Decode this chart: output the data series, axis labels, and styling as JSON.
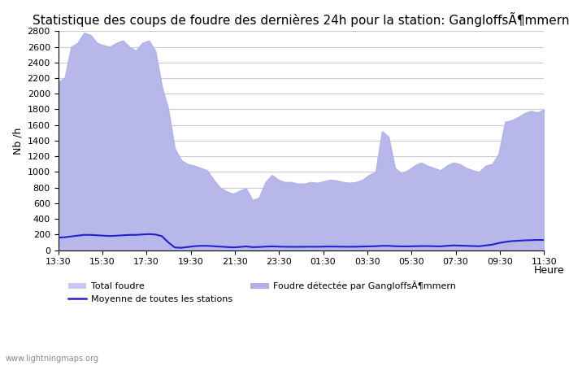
{
  "title": "Statistique des coups de foudre des dernières 24h pour la station: GangloffsÃ¶mmern",
  "xlabel": "Heure",
  "ylabel": "Nb /h",
  "ylim": [
    0,
    2800
  ],
  "yticks": [
    0,
    200,
    400,
    600,
    800,
    1000,
    1200,
    1400,
    1600,
    1800,
    2000,
    2200,
    2400,
    2600,
    2800
  ],
  "xtick_labels": [
    "13:30",
    "15:30",
    "17:30",
    "19:30",
    "21:30",
    "23:30",
    "01:30",
    "03:30",
    "05:30",
    "07:30",
    "09:30",
    "11:30"
  ],
  "total_foudre_color": "#c8c8f0",
  "detected_foudre_color": "#b0b0e8",
  "mean_line_color": "#2222cc",
  "background_color": "#ffffff",
  "grid_color": "#cccccc",
  "watermark": "www.lightningmaps.org",
  "total_foudre_y": [
    2150,
    2200,
    2600,
    2650,
    2780,
    2750,
    2650,
    2620,
    2600,
    2650,
    2680,
    2600,
    2550,
    2650,
    2680,
    2550,
    2100,
    1800,
    1300,
    1150,
    1100,
    1080,
    1050,
    1020,
    900,
    800,
    750,
    720,
    760,
    790,
    640,
    670,
    870,
    960,
    900,
    870,
    870,
    850,
    850,
    870,
    860,
    880,
    900,
    890,
    870,
    860,
    870,
    900,
    960,
    1000,
    1520,
    1450,
    1050,
    980,
    1020,
    1080,
    1120,
    1080,
    1050,
    1020,
    1080,
    1120,
    1100,
    1050,
    1020,
    1000,
    1080,
    1100,
    1230,
    1640,
    1660,
    1700,
    1750,
    1780,
    1760,
    1800
  ],
  "detected_foudre_y": [
    2150,
    2200,
    2600,
    2650,
    2780,
    2750,
    2650,
    2620,
    2600,
    2650,
    2680,
    2600,
    2550,
    2650,
    2680,
    2550,
    2100,
    1800,
    1300,
    1150,
    1100,
    1080,
    1050,
    1020,
    900,
    800,
    750,
    720,
    760,
    790,
    640,
    670,
    870,
    960,
    900,
    870,
    870,
    850,
    850,
    870,
    860,
    880,
    900,
    890,
    870,
    860,
    870,
    900,
    960,
    1000,
    1520,
    1450,
    1050,
    980,
    1020,
    1080,
    1120,
    1080,
    1050,
    1020,
    1080,
    1120,
    1100,
    1050,
    1020,
    1000,
    1080,
    1100,
    1230,
    1640,
    1660,
    1700,
    1750,
    1780,
    1760,
    1800
  ],
  "mean_line_y": [
    160,
    165,
    175,
    185,
    195,
    195,
    190,
    185,
    180,
    185,
    190,
    195,
    195,
    200,
    205,
    200,
    180,
    100,
    35,
    30,
    40,
    50,
    55,
    55,
    50,
    45,
    40,
    35,
    40,
    48,
    38,
    40,
    45,
    48,
    45,
    43,
    42,
    42,
    43,
    44,
    43,
    45,
    46,
    45,
    44,
    43,
    44,
    46,
    48,
    50,
    55,
    55,
    50,
    48,
    48,
    50,
    52,
    52,
    50,
    48,
    55,
    60,
    58,
    55,
    52,
    50,
    60,
    70,
    90,
    105,
    115,
    120,
    125,
    128,
    130,
    130
  ],
  "n_points": 76,
  "legend_label_total": "Total foudre",
  "legend_label_detected": "Foudre détectée par GangloffsÃ¶mmern",
  "legend_label_mean": "Moyenne de toutes les stations",
  "title_fontsize": 11,
  "axis_fontsize": 9,
  "tick_fontsize": 8
}
